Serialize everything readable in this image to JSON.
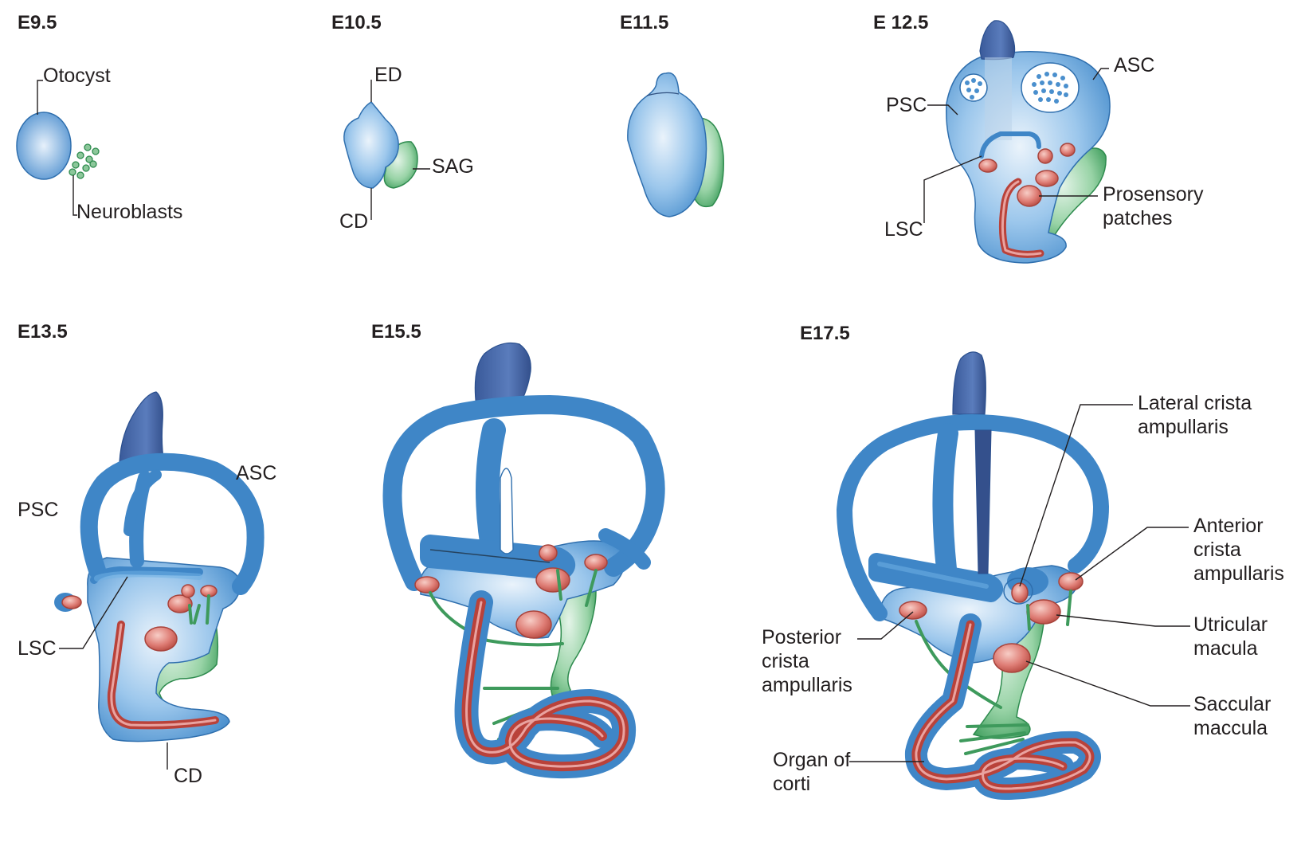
{
  "stages": {
    "e9_5": {
      "title": "E9.5",
      "labels": {
        "otocyst": "Otocyst",
        "neuroblasts": "Neuroblasts"
      }
    },
    "e10_5": {
      "title": "E10.5",
      "labels": {
        "ed": "ED",
        "sag": "SAG",
        "cd": "CD"
      }
    },
    "e11_5": {
      "title": "E11.5"
    },
    "e12_5": {
      "title": "E 12.5",
      "labels": {
        "psc": "PSC",
        "asc": "ASC",
        "lsc": "LSC",
        "prosensory_1": "Prosensory",
        "prosensory_2": "patches"
      }
    },
    "e13_5": {
      "title": "E13.5",
      "labels": {
        "psc": "PSC",
        "asc": "ASC",
        "lsc": "LSC",
        "cd": "CD"
      }
    },
    "e15_5": {
      "title": "E15.5"
    },
    "e17_5": {
      "title": "E17.5",
      "labels": {
        "lateral_1": "Lateral crista",
        "lateral_2": "ampullaris",
        "anterior_1": "Anterior",
        "anterior_2": "crista",
        "anterior_3": "ampullaris",
        "utricular_1": "Utricular",
        "utricular_2": "macula",
        "saccular_1": "Saccular",
        "saccular_2": "maccula",
        "posterior_1": "Posterior",
        "posterior_2": "crista",
        "posterior_3": "ampullaris",
        "organ_1": "Organ of",
        "organ_2": "corti"
      }
    }
  },
  "colors": {
    "epithelium_blue": "#3f86c7",
    "endolymphatic_duct": "#3d5d9f",
    "ganglion_green": "#4fae6c",
    "sensory_patch_red": "#d9716b",
    "cochlear_stripe": "#c4463f"
  }
}
